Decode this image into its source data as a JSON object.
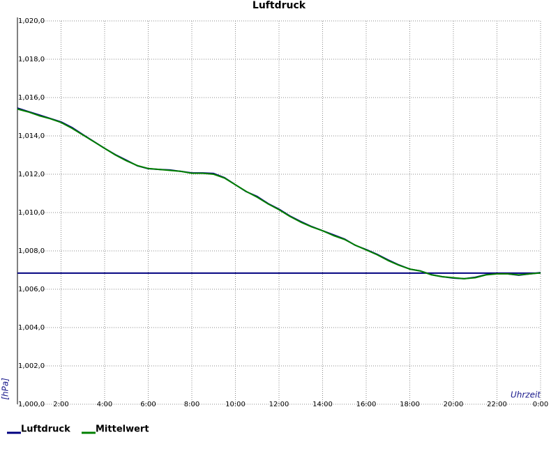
{
  "chart_data": {
    "type": "line",
    "title": "Luftdruck",
    "y_label": "[hPa]",
    "x_label": "Uhrzeit",
    "x": [
      0,
      0.5,
      1,
      1.5,
      2,
      2.5,
      3,
      3.5,
      4,
      4.5,
      5,
      5.5,
      6,
      6.5,
      7,
      7.5,
      8,
      8.5,
      9,
      9.5,
      10,
      10.5,
      11,
      11.5,
      12,
      12.5,
      13,
      13.5,
      14,
      14.5,
      15,
      15.5,
      16,
      16.5,
      17,
      17.5,
      18,
      18.5,
      19,
      19.5,
      20,
      20.5,
      21,
      21.5,
      22,
      22.5,
      23,
      23.5,
      24
    ],
    "series": [
      {
        "name": "Luftdruck",
        "color": "#000080",
        "values": [
          1015.45,
          1015.27,
          1015.09,
          1014.91,
          1014.73,
          1014.44,
          1014.07,
          1013.71,
          1013.35,
          1013.02,
          1012.73,
          1012.44,
          1012.29,
          1012.25,
          1012.22,
          1012.15,
          1012.07,
          1012.07,
          1012.04,
          1011.82,
          1011.45,
          1011.09,
          1010.84,
          1010.47,
          1010.18,
          1009.82,
          1009.53,
          1009.27,
          1009.05,
          1008.84,
          1008.62,
          1008.29,
          1008.07,
          1007.82,
          1007.53,
          1007.27,
          1007.05,
          1006.95,
          1006.76,
          1006.65,
          1006.58,
          1006.55,
          1006.62,
          1006.76,
          1006.84,
          1006.8,
          1006.73,
          1006.8,
          1006.87
        ]
      },
      {
        "name": "Mittelwert",
        "color": "#008000",
        "values": [
          1015.4,
          1015.25,
          1015.05,
          1014.9,
          1014.7,
          1014.4,
          1014.05,
          1013.7,
          1013.35,
          1013.0,
          1012.7,
          1012.45,
          1012.3,
          1012.25,
          1012.2,
          1012.15,
          1012.05,
          1012.05,
          1012.0,
          1011.8,
          1011.45,
          1011.1,
          1010.8,
          1010.45,
          1010.15,
          1009.8,
          1009.5,
          1009.25,
          1009.05,
          1008.8,
          1008.6,
          1008.3,
          1008.05,
          1007.8,
          1007.5,
          1007.25,
          1007.05,
          1006.95,
          1006.75,
          1006.65,
          1006.6,
          1006.55,
          1006.6,
          1006.75,
          1006.8,
          1006.8,
          1006.75,
          1006.8,
          1006.85
        ]
      }
    ],
    "hline": {
      "value": 1006.84,
      "color": "#000080"
    },
    "xlim": [
      0,
      24
    ],
    "ylim": [
      1000,
      1020
    ],
    "xticks": [
      {
        "value": 2,
        "label": "2:00"
      },
      {
        "value": 4,
        "label": "4:00"
      },
      {
        "value": 6,
        "label": "6:00"
      },
      {
        "value": 8,
        "label": "8:00"
      },
      {
        "value": 10,
        "label": "10:00"
      },
      {
        "value": 12,
        "label": "12:00"
      },
      {
        "value": 14,
        "label": "14:00"
      },
      {
        "value": 16,
        "label": "16:00"
      },
      {
        "value": 18,
        "label": "18:00"
      },
      {
        "value": 20,
        "label": "20:00"
      },
      {
        "value": 22,
        "label": "22:00"
      },
      {
        "value": 24,
        "label": "0:00"
      }
    ],
    "yticks": [
      {
        "value": 1000,
        "label": "1,000,0"
      },
      {
        "value": 1002,
        "label": "1,002,0"
      },
      {
        "value": 1004,
        "label": "1,004,0"
      },
      {
        "value": 1006,
        "label": "1,006,0"
      },
      {
        "value": 1008,
        "label": "1,008,0"
      },
      {
        "value": 1010,
        "label": "1,010,0"
      },
      {
        "value": 1012,
        "label": "1,012,0"
      },
      {
        "value": 1014,
        "label": "1,014,0"
      },
      {
        "value": 1016,
        "label": "1,016,0"
      },
      {
        "value": 1018,
        "label": "1,018,0"
      },
      {
        "value": 1020,
        "label": "1,020,0"
      }
    ],
    "grid": true
  }
}
